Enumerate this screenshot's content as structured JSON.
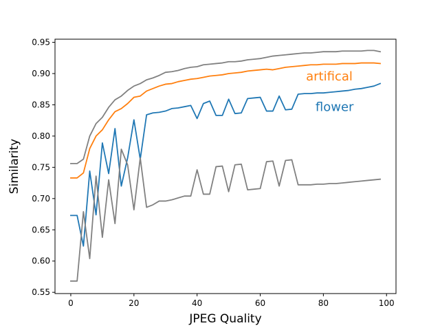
{
  "chart_data": {
    "type": "line",
    "xlabel": "JPEG Quality",
    "ylabel": "Similarity",
    "xlim": [
      -5,
      103
    ],
    "ylim": [
      0.548,
      0.955
    ],
    "xticks": [
      0,
      20,
      40,
      60,
      80,
      100
    ],
    "yticks": [
      0.55,
      0.6,
      0.65,
      0.7,
      0.75,
      0.8,
      0.85,
      0.9,
      0.95
    ],
    "grid": false,
    "legend": "none",
    "x": [
      0,
      2,
      4,
      6,
      8,
      10,
      12,
      14,
      16,
      18,
      20,
      22,
      24,
      26,
      28,
      30,
      32,
      34,
      36,
      38,
      40,
      42,
      44,
      46,
      48,
      50,
      52,
      54,
      56,
      58,
      60,
      62,
      64,
      66,
      68,
      70,
      72,
      74,
      76,
      78,
      80,
      82,
      84,
      86,
      88,
      90,
      92,
      94,
      96,
      98
    ],
    "series": [
      {
        "name": "",
        "color": "#808080",
        "values": [
          0.756,
          0.756,
          0.763,
          0.8,
          0.82,
          0.83,
          0.846,
          0.858,
          0.864,
          0.873,
          0.88,
          0.884,
          0.89,
          0.893,
          0.897,
          0.902,
          0.903,
          0.905,
          0.908,
          0.91,
          0.911,
          0.914,
          0.915,
          0.916,
          0.917,
          0.919,
          0.919,
          0.92,
          0.922,
          0.923,
          0.924,
          0.926,
          0.928,
          0.929,
          0.93,
          0.931,
          0.932,
          0.933,
          0.933,
          0.934,
          0.935,
          0.935,
          0.935,
          0.936,
          0.936,
          0.936,
          0.936,
          0.937,
          0.937,
          0.935
        ]
      },
      {
        "name": "artifical",
        "color": "#ff7f0e",
        "values": [
          0.733,
          0.733,
          0.741,
          0.78,
          0.8,
          0.81,
          0.826,
          0.839,
          0.844,
          0.852,
          0.862,
          0.864,
          0.872,
          0.876,
          0.88,
          0.883,
          0.884,
          0.887,
          0.889,
          0.891,
          0.892,
          0.894,
          0.896,
          0.897,
          0.898,
          0.9,
          0.901,
          0.902,
          0.904,
          0.905,
          0.906,
          0.907,
          0.906,
          0.908,
          0.91,
          0.911,
          0.912,
          0.913,
          0.914,
          0.914,
          0.915,
          0.915,
          0.915,
          0.916,
          0.916,
          0.916,
          0.917,
          0.917,
          0.917,
          0.916
        ]
      },
      {
        "name": "flower",
        "color": "#1f77b4",
        "values": [
          0.673,
          0.673,
          0.624,
          0.744,
          0.674,
          0.789,
          0.74,
          0.812,
          0.72,
          0.765,
          0.826,
          0.763,
          0.834,
          0.837,
          0.838,
          0.84,
          0.844,
          0.845,
          0.847,
          0.849,
          0.828,
          0.852,
          0.856,
          0.833,
          0.833,
          0.859,
          0.836,
          0.837,
          0.86,
          0.861,
          0.862,
          0.84,
          0.84,
          0.864,
          0.842,
          0.843,
          0.867,
          0.868,
          0.868,
          0.869,
          0.869,
          0.87,
          0.871,
          0.872,
          0.873,
          0.875,
          0.876,
          0.878,
          0.88,
          0.884
        ]
      },
      {
        "name": "",
        "color": "#808080",
        "values": [
          0.568,
          0.568,
          0.679,
          0.604,
          0.736,
          0.638,
          0.73,
          0.66,
          0.779,
          0.754,
          0.682,
          0.765,
          0.686,
          0.69,
          0.696,
          0.696,
          0.698,
          0.701,
          0.704,
          0.704,
          0.746,
          0.707,
          0.707,
          0.751,
          0.752,
          0.711,
          0.754,
          0.755,
          0.714,
          0.715,
          0.716,
          0.759,
          0.76,
          0.72,
          0.761,
          0.762,
          0.722,
          0.722,
          0.722,
          0.723,
          0.723,
          0.724,
          0.724,
          0.725,
          0.726,
          0.727,
          0.728,
          0.729,
          0.73,
          0.731
        ]
      }
    ],
    "annotations": [
      {
        "text": "artifical",
        "x": 74.5,
        "y": 0.8965,
        "color": "#ff7f0e"
      },
      {
        "text": "flower",
        "x": 77.5,
        "y": 0.8475,
        "color": "#1f77b4"
      }
    ]
  }
}
